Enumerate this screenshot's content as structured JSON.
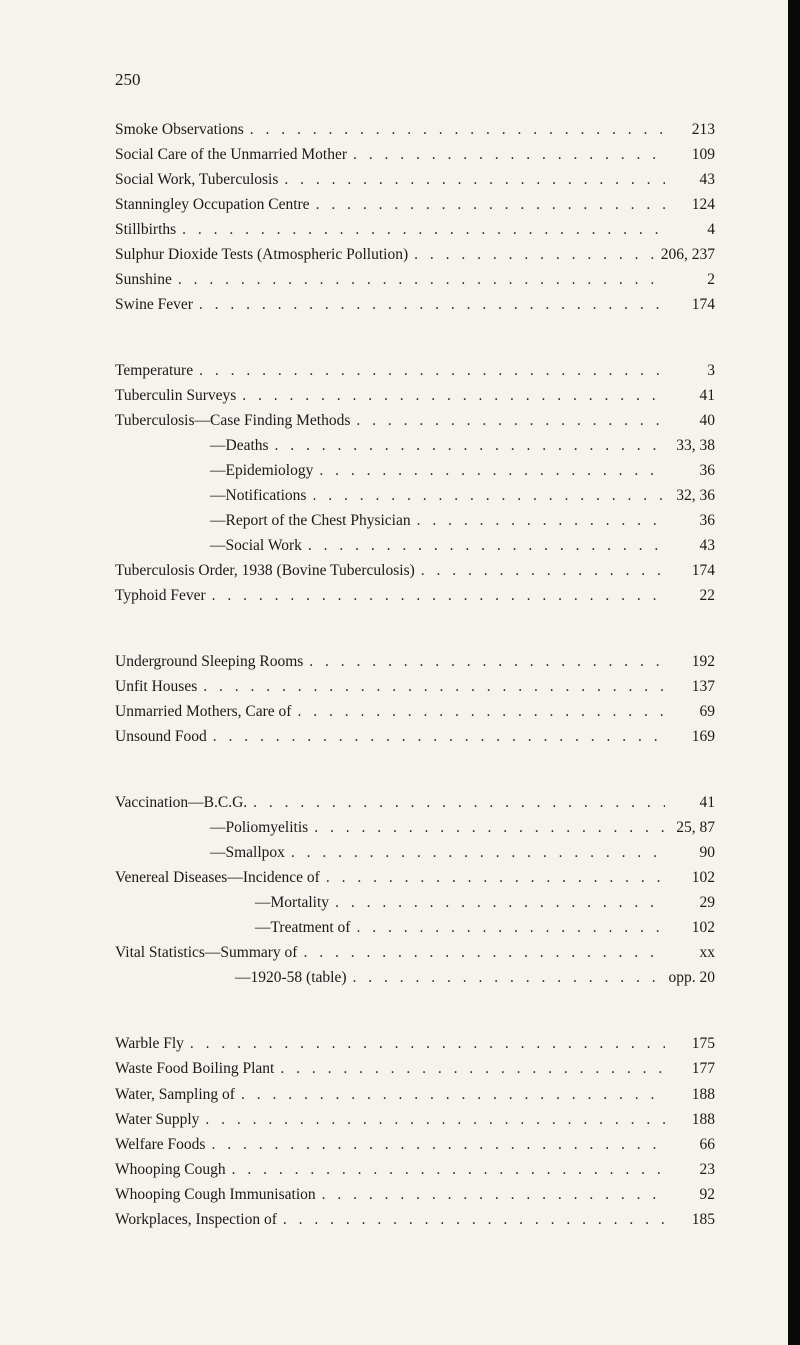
{
  "pageNumber": "250",
  "sections": [
    {
      "entries": [
        {
          "label": "Smoke Observations",
          "page": "213",
          "sub": false
        },
        {
          "label": "Social Care of the Unmarried Mother",
          "page": "109",
          "sub": false
        },
        {
          "label": "Social Work, Tuberculosis",
          "page": "43",
          "sub": false
        },
        {
          "label": "Stanningley Occupation Centre",
          "page": "124",
          "sub": false
        },
        {
          "label": "Stillbirths",
          "page": "4",
          "sub": false
        },
        {
          "label": "Sulphur Dioxide Tests (Atmospheric Pollution)",
          "page": "206, 237",
          "sub": false
        },
        {
          "label": "Sunshine",
          "page": "2",
          "sub": false
        },
        {
          "label": "Swine Fever",
          "page": "174",
          "sub": false
        }
      ]
    },
    {
      "entries": [
        {
          "label": "Temperature",
          "page": "3",
          "sub": false
        },
        {
          "label": "Tuberculin Surveys",
          "page": "41",
          "sub": false
        },
        {
          "label": "Tuberculosis—Case Finding Methods",
          "page": "40",
          "sub": false
        },
        {
          "label": "—Deaths",
          "page": "33, 38",
          "sub": true
        },
        {
          "label": "—Epidemiology",
          "page": "36",
          "sub": true
        },
        {
          "label": "—Notifications",
          "page": "32, 36",
          "sub": true
        },
        {
          "label": "—Report of the Chest Physician",
          "page": "36",
          "sub": true
        },
        {
          "label": "—Social Work",
          "page": "43",
          "sub": true
        },
        {
          "label": "Tuberculosis Order, 1938 (Bovine Tuberculosis)",
          "page": "174",
          "sub": false
        },
        {
          "label": "Typhoid Fever",
          "page": "22",
          "sub": false
        }
      ]
    },
    {
      "entries": [
        {
          "label": "Underground Sleeping Rooms",
          "page": "192",
          "sub": false
        },
        {
          "label": "Unfit Houses",
          "page": "137",
          "sub": false
        },
        {
          "label": "Unmarried Mothers, Care of",
          "page": "69",
          "sub": false
        },
        {
          "label": "Unsound Food",
          "page": "169",
          "sub": false
        }
      ]
    },
    {
      "entries": [
        {
          "label": "Vaccination—B.C.G.",
          "page": "41",
          "sub": false
        },
        {
          "label": "—Poliomyelitis",
          "page": "25, 87",
          "sub": true
        },
        {
          "label": "—Smallpox",
          "page": "90",
          "sub": true
        },
        {
          "label": "Venereal Diseases—Incidence of",
          "page": "102",
          "sub": false
        },
        {
          "label": "—Mortality",
          "page": "29",
          "sub": true,
          "indent": 140
        },
        {
          "label": "—Treatment of",
          "page": "102",
          "sub": true,
          "indent": 140
        },
        {
          "label": "Vital Statistics—Summary of",
          "page": "xx",
          "sub": false
        },
        {
          "label": "—1920-58 (table)",
          "page": "opp. 20",
          "sub": true,
          "indent": 120
        }
      ]
    },
    {
      "entries": [
        {
          "label": "Warble Fly",
          "page": "175",
          "sub": false
        },
        {
          "label": "Waste Food Boiling Plant",
          "page": "177",
          "sub": false
        },
        {
          "label": "Water, Sampling of",
          "page": "188",
          "sub": false
        },
        {
          "label": "Water Supply",
          "page": "188",
          "sub": false
        },
        {
          "label": "Welfare Foods",
          "page": "66",
          "sub": false
        },
        {
          "label": "Whooping Cough",
          "page": "23",
          "sub": false
        },
        {
          "label": "Whooping Cough Immunisation",
          "page": "92",
          "sub": false
        },
        {
          "label": "Workplaces, Inspection of",
          "page": "185",
          "sub": false
        }
      ]
    }
  ]
}
